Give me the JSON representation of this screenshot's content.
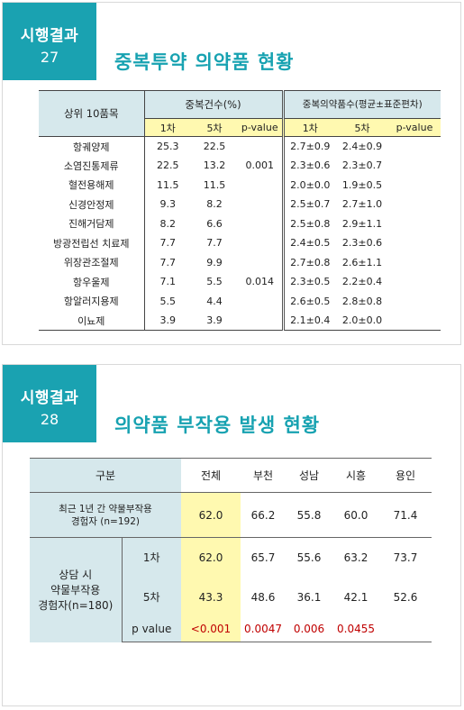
{
  "slide1": {
    "tag_title": "시행결과",
    "tag_number": "27",
    "title": "중복투약 의약품 현황",
    "table": {
      "col_item": "상위 10품목",
      "group_dup": "중복건수(%)",
      "group_mean": "중복의약품수(평균±표준편차)",
      "sub_1": "1차",
      "sub_5": "5차",
      "sub_p": "p-value",
      "sub_1b": "1차",
      "sub_5b": "5차",
      "sub_pb": "p-value",
      "rows": [
        {
          "name": "항궤양제",
          "d1": "25.3",
          "d5": "22.5",
          "p": "",
          "m1": "2.7±0.9",
          "m5": "2.4±0.9"
        },
        {
          "name": "소염진통제류",
          "d1": "22.5",
          "d5": "13.2",
          "p": "0.001",
          "m1": "2.3±0.6",
          "m5": "2.3±0.7"
        },
        {
          "name": "혈전용해제",
          "d1": "11.5",
          "d5": "11.5",
          "p": "",
          "m1": "2.0±0.0",
          "m5": "1.9±0.5"
        },
        {
          "name": "신경안정제",
          "d1": "9.3",
          "d5": "8.2",
          "p": "",
          "m1": "2.5±0.7",
          "m5": "2.7±1.0"
        },
        {
          "name": "진해거담제",
          "d1": "8.2",
          "d5": "6.6",
          "p": "",
          "m1": "2.5±0.8",
          "m5": "2.9±1.1"
        },
        {
          "name": "방광전립선 치료제",
          "d1": "7.7",
          "d5": "7.7",
          "p": "",
          "m1": "2.4±0.5",
          "m5": "2.3±0.6"
        },
        {
          "name": "위장관조절제",
          "d1": "7.7",
          "d5": "9.9",
          "p": "",
          "m1": "2.7±0.8",
          "m5": "2.6±1.1"
        },
        {
          "name": "항우울제",
          "d1": "7.1",
          "d5": "5.5",
          "p": "0.014",
          "m1": "2.3±0.5",
          "m5": "2.2±0.4"
        },
        {
          "name": "항알러지용제",
          "d1": "5.5",
          "d5": "4.4",
          "p": "",
          "m1": "2.6±0.5",
          "m5": "2.8±0.8"
        },
        {
          "name": "이뇨제",
          "d1": "3.9",
          "d5": "3.9",
          "p": "",
          "m1": "2.1±0.4",
          "m5": "2.0±0.0"
        }
      ]
    }
  },
  "slide2": {
    "tag_title": "시행결과",
    "tag_number": "28",
    "title": "의약품 부작용 발생 현황",
    "table": {
      "col_group": "구분",
      "cols": [
        "전체",
        "부천",
        "성남",
        "시흥",
        "용인"
      ],
      "recent_label_1": "최근 1년 간 약물부작용",
      "recent_label_2": "경험자 (n=192)",
      "recent_values": [
        "62.0",
        "66.2",
        "55.8",
        "60.0",
        "71.4"
      ],
      "consult_label_1": "상담 시",
      "consult_label_2": "약물부작용",
      "consult_label_3": "경험자(n=180)",
      "row1_label": "1차",
      "row1_values": [
        "62.0",
        "65.7",
        "55.6",
        "63.2",
        "73.7"
      ],
      "row5_label": "5차",
      "row5_values": [
        "43.3",
        "48.6",
        "36.1",
        "42.1",
        "52.6"
      ],
      "p_label": "p value",
      "p_values": [
        "<0.001",
        "0.0047",
        "0.006",
        "0.0455",
        ""
      ]
    }
  }
}
